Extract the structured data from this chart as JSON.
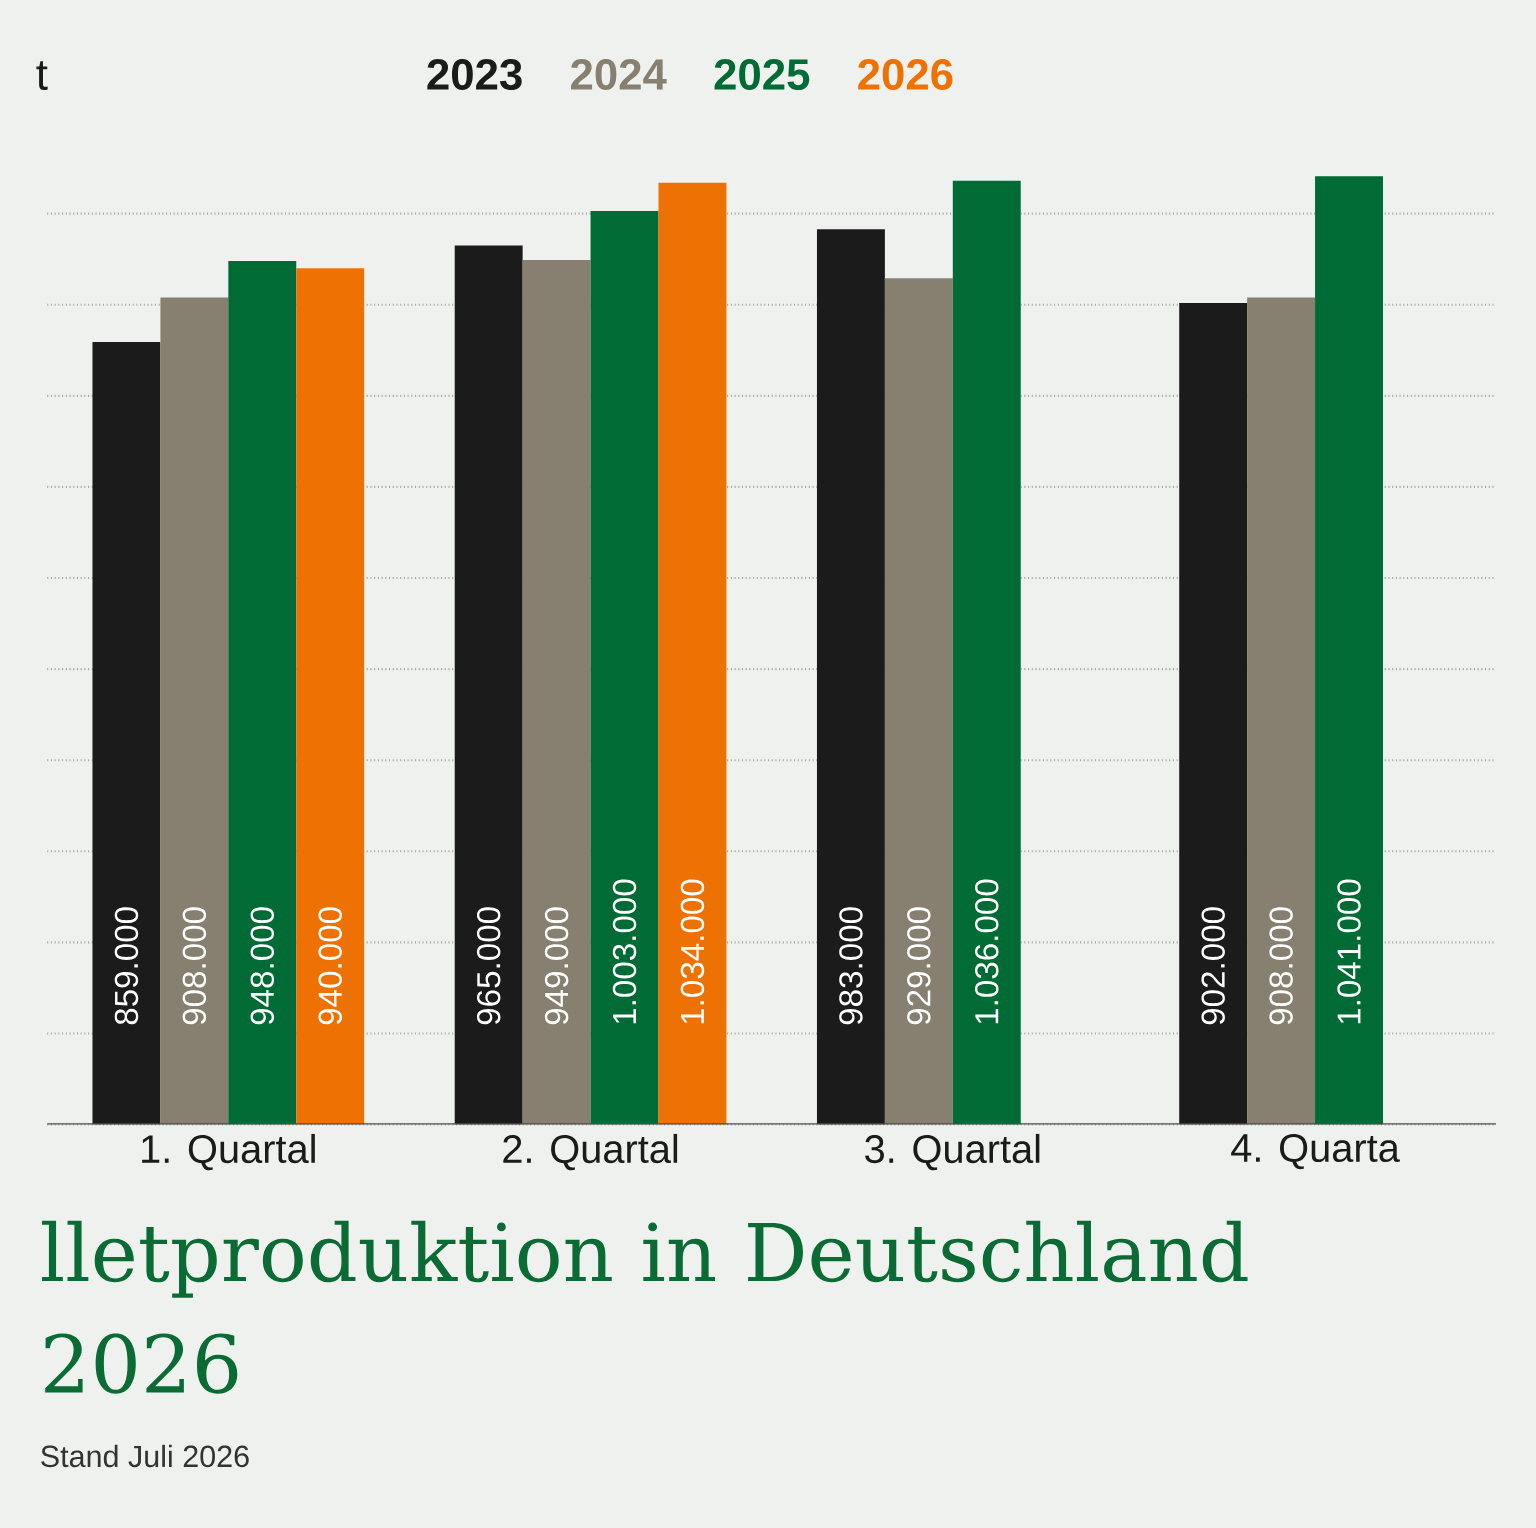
{
  "chart_data": {
    "type": "bar",
    "title": "lletproduktion in Deutschland 2026",
    "ylabel": "t",
    "annotations": [
      "Stand Juli 2026"
    ],
    "categories": [
      "1. Quartal",
      "2. Quartal",
      "3. Quartal",
      "4. Quarta"
    ],
    "series": [
      {
        "name": "2023",
        "color": "#1b1b1b",
        "values": [
          859000,
          965000,
          983000,
          902000
        ],
        "value_labels": [
          "859.000",
          "965.000",
          "983.000",
          "902.000"
        ]
      },
      {
        "name": "2024",
        "color": "#878071",
        "values": [
          908000,
          949000,
          929000,
          908000
        ],
        "value_labels": [
          "908.000",
          "949.000",
          "929.000",
          "908.000"
        ]
      },
      {
        "name": "2025",
        "color": "#006b34",
        "values": [
          948000,
          1003000,
          1036000,
          1041000
        ],
        "value_labels": [
          "948.000",
          "1.003.000",
          "1.036.000",
          "1.041.000"
        ]
      },
      {
        "name": "2026",
        "color": "#ee7203",
        "values": [
          940000,
          1034000,
          null,
          null
        ],
        "value_labels": [
          "940.000",
          "1.034.000",
          null,
          null
        ]
      }
    ],
    "yticks": [
      {
        "value": 0,
        "label": null
      },
      {
        "value": 100000,
        "label": null
      },
      {
        "value": 200000,
        "label": null
      },
      {
        "value": 300000,
        "label": null
      },
      {
        "value": 400000,
        "label": null
      },
      {
        "value": 500000,
        "label": null
      },
      {
        "value": 600000,
        "label": null
      },
      {
        "value": 700000,
        "label": null
      },
      {
        "value": 800000,
        "label": null
      },
      {
        "value": 900000,
        "label": null
      },
      {
        "value": 1000000,
        "label": null
      }
    ],
    "grid": "y",
    "tick_labels": "x"
  }
}
